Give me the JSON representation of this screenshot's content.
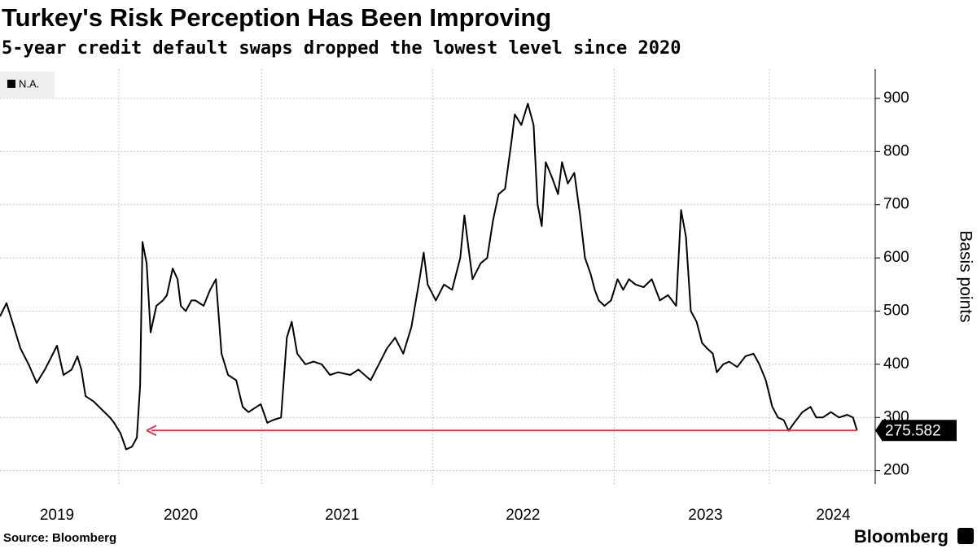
{
  "chart_data": {
    "type": "line",
    "title": "Turkey's Risk Perception Has Been Improving",
    "subtitle": "5-year credit default swaps dropped the lowest level since 2020",
    "y_label": "Basis points",
    "source": "Source: Bloomberg",
    "brand": "Bloomberg",
    "legend": "top-left",
    "grid": true,
    "arrow_color": "#e8384f",
    "xlim": [
      2019.61,
      2024.45
    ],
    "ylim": [
      175,
      955
    ],
    "yticks": [
      200,
      300,
      400,
      500,
      600,
      700,
      800,
      900
    ],
    "xticks": [
      {
        "value": 2019.925,
        "label": "2019"
      },
      {
        "value": 2020.61,
        "label": "2020"
      },
      {
        "value": 2021.502,
        "label": "2021"
      },
      {
        "value": 2022.502,
        "label": "2022"
      },
      {
        "value": 2023.511,
        "label": "2023"
      },
      {
        "value": 2024.218,
        "label": "2024"
      }
    ],
    "x": [
      2019.61,
      2019.646,
      2019.678,
      2019.723,
      2019.768,
      2019.813,
      2019.858,
      2019.903,
      2019.925,
      2019.961,
      2020.006,
      2020.038,
      2020.06,
      2020.083,
      2020.128,
      2020.173,
      2020.218,
      2020.241,
      2020.277,
      2020.308,
      2020.34,
      2020.367,
      2020.385,
      2020.398,
      2020.421,
      2020.443,
      2020.475,
      2020.511,
      2020.533,
      2020.565,
      2020.592,
      2020.61,
      2020.637,
      2020.669,
      2020.691,
      2020.736,
      2020.772,
      2020.804,
      2020.835,
      2020.871,
      2020.916,
      2020.952,
      2020.984,
      2021.029,
      2021.052,
      2021.088,
      2021.119,
      2021.164,
      2021.196,
      2021.223,
      2021.254,
      2021.299,
      2021.344,
      2021.389,
      2021.435,
      2021.48,
      2021.547,
      2021.592,
      2021.66,
      2021.705,
      2021.75,
      2021.795,
      2021.84,
      2021.885,
      2021.93,
      2021.953,
      2021.975,
      2022.02,
      2022.065,
      2022.11,
      2022.155,
      2022.178,
      2022.2,
      2022.223,
      2022.268,
      2022.304,
      2022.336,
      2022.367,
      2022.403,
      2022.439,
      2022.457,
      2022.493,
      2022.529,
      2022.561,
      2022.583,
      2022.606,
      2022.628,
      2022.664,
      2022.696,
      2022.718,
      2022.75,
      2022.786,
      2022.818,
      2022.845,
      2022.876,
      2022.899,
      2022.921,
      2022.953,
      2022.989,
      2023.025,
      2023.056,
      2023.088,
      2023.124,
      2023.169,
      2023.214,
      2023.259,
      2023.304,
      2023.349,
      2023.376,
      2023.403,
      2023.43,
      2023.462,
      2023.493,
      2023.52,
      2023.552,
      2023.574,
      2023.61,
      2023.642,
      2023.687,
      2023.732,
      2023.777,
      2023.809,
      2023.845,
      2023.881,
      2023.912,
      2023.944,
      2023.971,
      2024.002,
      2024.047,
      2024.092,
      2024.124,
      2024.16,
      2024.205,
      2024.25,
      2024.295,
      2024.327,
      2024.349
    ],
    "series": [
      {
        "name": "N.A.",
        "color": "#000000",
        "values": [
          490,
          515,
          480,
          430,
          400,
          365,
          390,
          420,
          435,
          380,
          390,
          415,
          390,
          340,
          330,
          315,
          300,
          290,
          270,
          240,
          245,
          262,
          360,
          630,
          590,
          460,
          510,
          520,
          530,
          580,
          560,
          510,
          500,
          520,
          520,
          510,
          540,
          560,
          420,
          380,
          370,
          320,
          310,
          320,
          325,
          290,
          295,
          300,
          450,
          480,
          420,
          400,
          405,
          400,
          380,
          385,
          380,
          390,
          370,
          400,
          430,
          450,
          420,
          470,
          560,
          610,
          550,
          520,
          550,
          540,
          600,
          680,
          620,
          560,
          590,
          600,
          670,
          720,
          730,
          820,
          870,
          850,
          890,
          850,
          700,
          660,
          780,
          750,
          720,
          780,
          740,
          760,
          680,
          600,
          570,
          540,
          520,
          510,
          520,
          560,
          540,
          560,
          550,
          545,
          560,
          520,
          530,
          510,
          690,
          640,
          500,
          480,
          440,
          430,
          420,
          385,
          400,
          405,
          395,
          415,
          420,
          400,
          370,
          320,
          300,
          295,
          275,
          290,
          310,
          320,
          300,
          300,
          310,
          300,
          305,
          300,
          275.582
        ]
      }
    ]
  }
}
